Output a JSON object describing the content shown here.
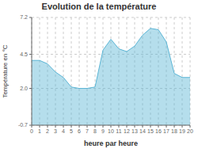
{
  "chart_data": {
    "type": "area",
    "title": "Evolution de la température",
    "xlabel": "heure par heure",
    "ylabel": "Température en °C",
    "x": [
      0,
      1,
      2,
      3,
      4,
      5,
      6,
      7,
      8,
      9,
      10,
      11,
      12,
      13,
      14,
      15,
      16,
      17,
      18,
      19,
      20
    ],
    "values": [
      4.05,
      4.05,
      3.8,
      3.2,
      2.8,
      2.1,
      2.0,
      2.0,
      2.1,
      4.8,
      5.6,
      4.9,
      4.7,
      5.1,
      5.9,
      6.4,
      6.3,
      5.4,
      3.1,
      2.8,
      2.8
    ],
    "xlim": [
      0,
      20
    ],
    "xticks": [
      0,
      1,
      2,
      3,
      4,
      5,
      6,
      7,
      8,
      9,
      10,
      11,
      12,
      13,
      14,
      15,
      16,
      17,
      18,
      19,
      20
    ],
    "ylim": [
      -0.7,
      7.2
    ],
    "yticks": [
      -0.7,
      {
        "value": 2.0,
        "label": "2.0"
      },
      4.5,
      7.2
    ],
    "color": "#5bb5d5",
    "grid": true
  }
}
